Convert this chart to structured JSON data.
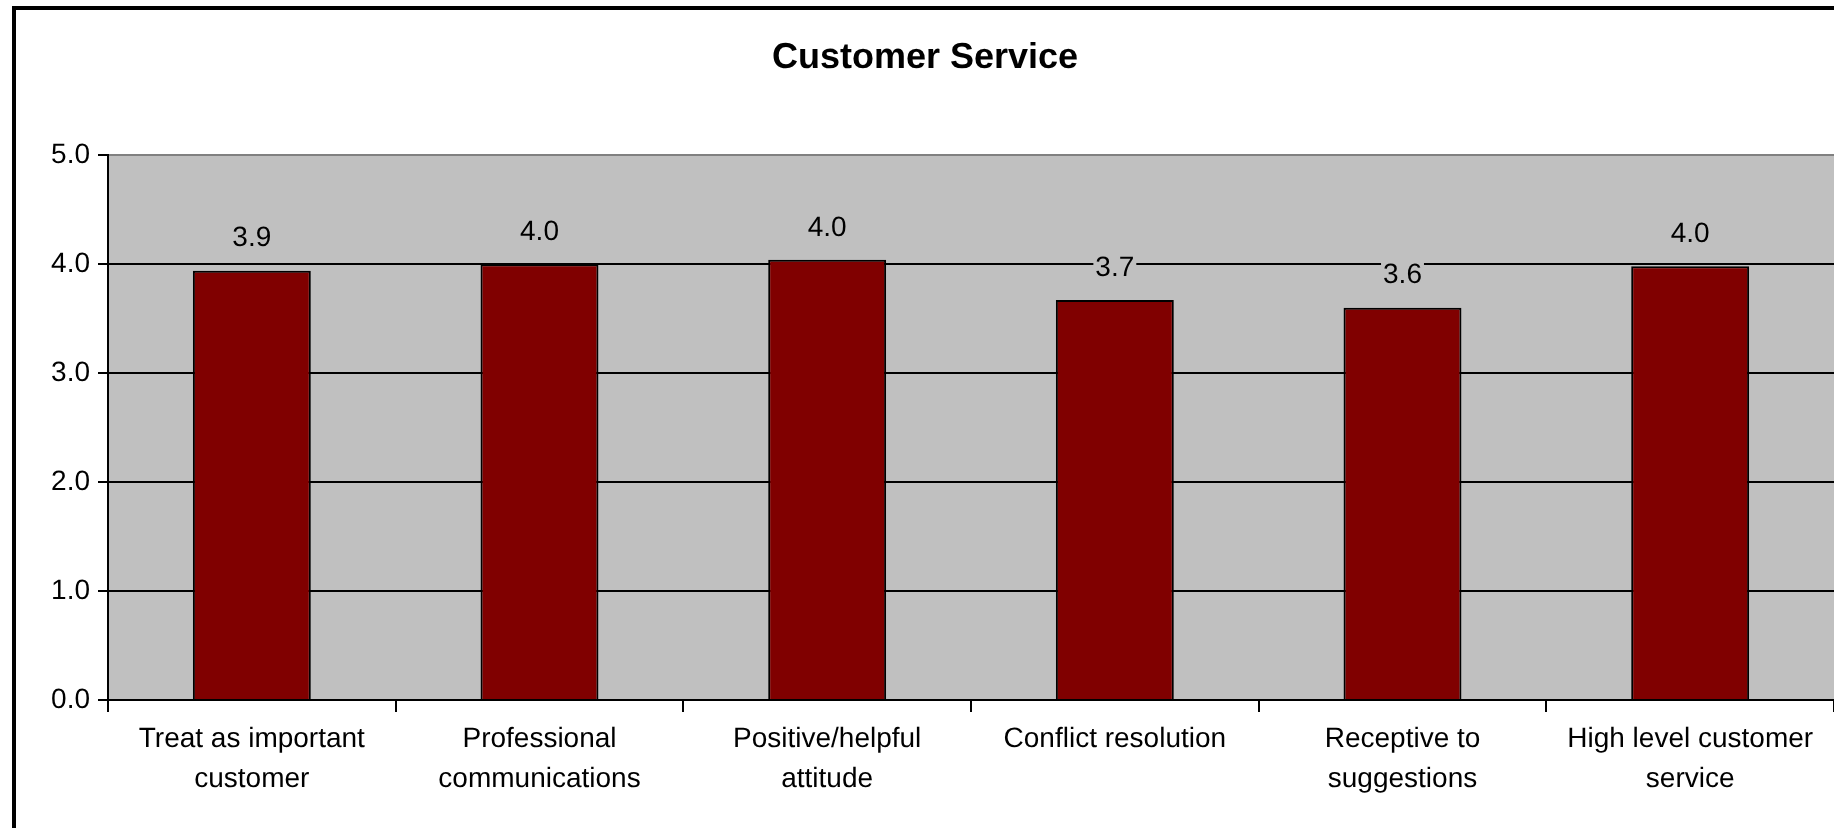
{
  "chart_data": {
    "type": "bar",
    "title": "Customer Service",
    "categories": [
      "Treat as important customer",
      "Professional communications",
      "Positive/helpful attitude",
      "Conflict resolution",
      "Receptive to suggestions",
      "High level customer service"
    ],
    "values": [
      3.94,
      4.0,
      4.04,
      3.67,
      3.6,
      3.98
    ],
    "color": "#800000",
    "value_labels": [
      "3.9",
      "4.0",
      "4.0",
      "3.7",
      "3.6",
      "4.0"
    ],
    "ylim": [
      0,
      5
    ],
    "yticks": [
      {
        "value": 0,
        "label": "0.0"
      },
      {
        "value": 1,
        "label": "1.0"
      },
      {
        "value": 2,
        "label": "2.0"
      },
      {
        "value": 3,
        "label": "3.0"
      },
      {
        "value": 4,
        "label": "4.0"
      },
      {
        "value": 5,
        "label": "5.0"
      }
    ],
    "grid": "y"
  }
}
